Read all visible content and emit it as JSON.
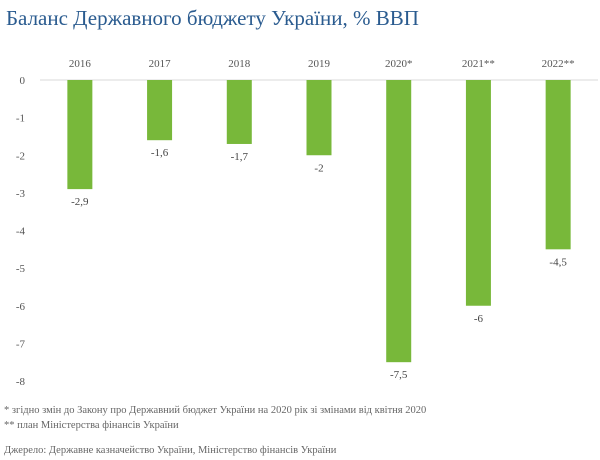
{
  "chart_data": {
    "type": "bar",
    "title": "Баланс Державного бюджету України, % ВВП",
    "categories": [
      "2016",
      "2017",
      "2018",
      "2019",
      "2020*",
      "2021**",
      "2022**"
    ],
    "values": [
      -2.9,
      -1.6,
      -1.7,
      -2,
      -7.5,
      -6,
      -4.5
    ],
    "data_labels": [
      "-2,9",
      "-1,6",
      "-1,7",
      "-2",
      "-7,5",
      "-6",
      "-4,5"
    ],
    "yticks": [
      "0",
      "-1",
      "-2",
      "-3",
      "-4",
      "-5",
      "-6",
      "-7",
      "-8"
    ],
    "ylim": [
      -8,
      0
    ],
    "xlabel": "",
    "ylabel": "",
    "grid": false,
    "bar_color": "#78b83a",
    "title_color": "#2a5b8f"
  },
  "notes": {
    "footnote1": "* згідно змін до Закону про Державний бюджет України на 2020 рік зі змінами від квітня 2020",
    "footnote2": "** план Міністерства фінансів України",
    "source": "Джерело: Державне казначейство України, Міністерство фінансів України"
  }
}
